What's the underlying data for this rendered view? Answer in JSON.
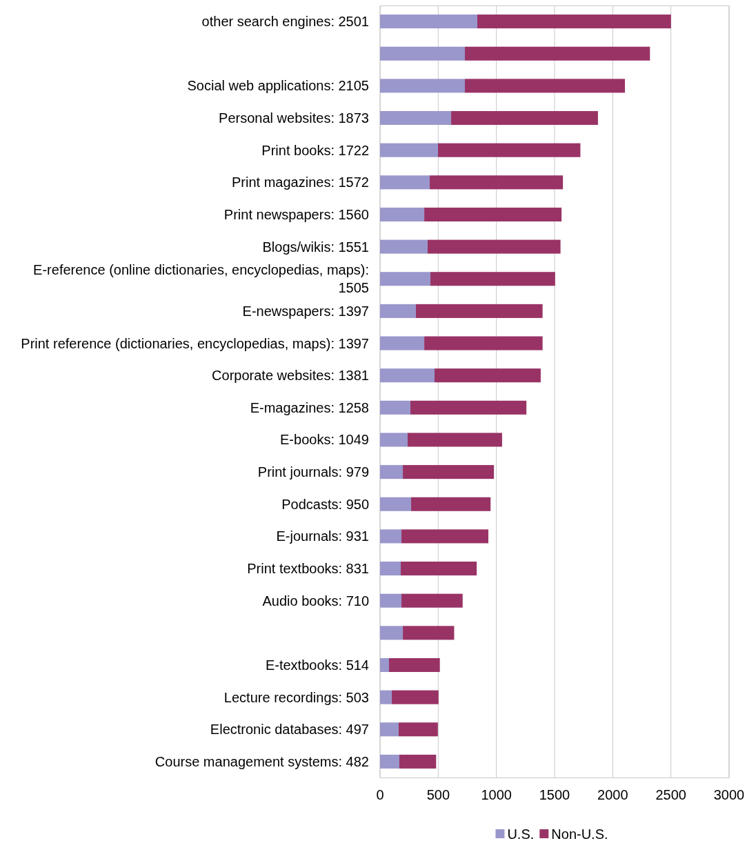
{
  "chart_data": {
    "type": "bar",
    "orientation": "horizontal",
    "stacked": true,
    "categories": [
      "other search engines: 2501",
      null,
      "Social web applications: 2105",
      "Personal websites: 1873",
      "Print books: 1722",
      "Print magazines: 1572",
      "Print newspapers: 1560",
      "Blogs/wikis: 1551",
      "E-reference (online dictionaries, encyclopedias, maps): 1505",
      "E-newspapers: 1397",
      "Print reference (dictionaries, encyclopedias, maps): 1397",
      "Corporate websites: 1381",
      "E-magazines: 1258",
      "E-books: 1049",
      "Print journals: 979",
      "Podcasts: 950",
      "E-journals: 931",
      "Print textbooks: 831",
      "Audio books: 710",
      null,
      "E-textbooks: 514",
      "Lecture recordings: 503",
      "Electronic databases: 497",
      "Course management systems: 482"
    ],
    "series": [
      {
        "name": "U.S.",
        "color": "#9a97cc",
        "values": [
          836,
          729,
          729,
          611,
          498,
          427,
          380,
          409,
          433,
          308,
          380,
          468,
          261,
          237,
          196,
          267,
          184,
          178,
          184,
          196,
          77,
          101,
          160,
          166
        ]
      },
      {
        "name": "Non-U.S.",
        "color": "#993366",
        "values": [
          1665,
          1591,
          1376,
          1262,
          1224,
          1145,
          1180,
          1142,
          1072,
          1089,
          1017,
          913,
          997,
          812,
          783,
          683,
          747,
          653,
          526,
          441,
          437,
          402,
          337,
          316
        ]
      }
    ],
    "xlim": [
      0,
      3000
    ],
    "xticks": [
      0,
      500,
      1000,
      1500,
      2000,
      2500,
      3000
    ],
    "grid": "x",
    "legend": "bottom"
  }
}
